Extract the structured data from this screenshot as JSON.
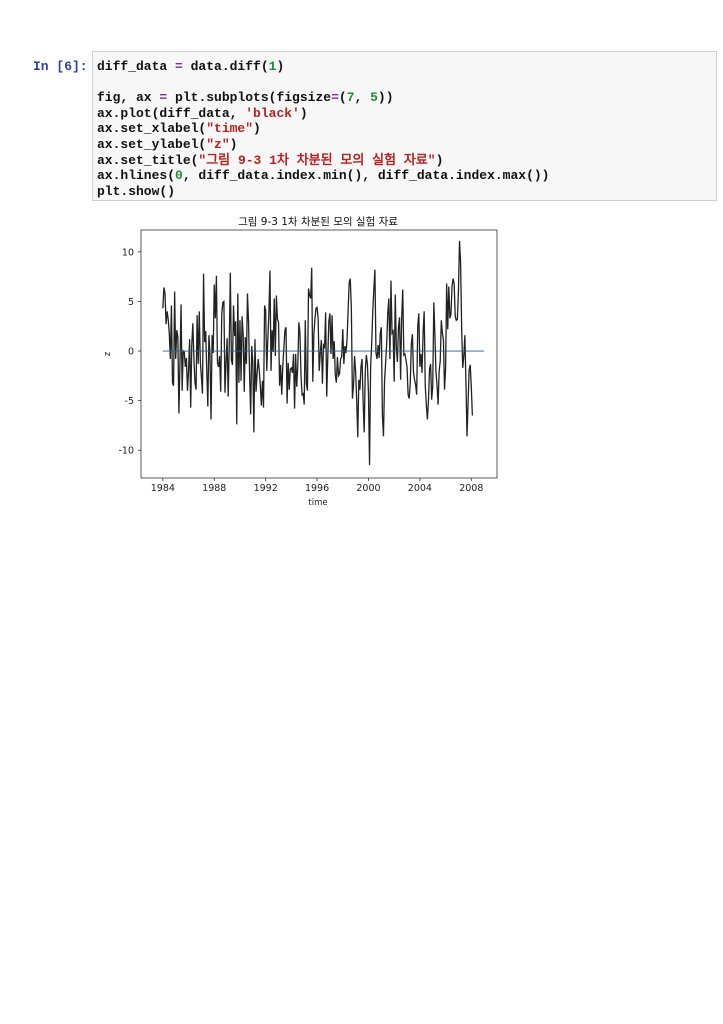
{
  "cell": {
    "prompt": "In [6]:",
    "code": [
      [
        {
          "t": "diff_data "
        },
        {
          "t": "=",
          "c": "op"
        },
        {
          "t": " data.diff("
        },
        {
          "t": "1",
          "c": "num"
        },
        {
          "t": ")"
        }
      ],
      [],
      [
        {
          "t": "fig, ax "
        },
        {
          "t": "=",
          "c": "op"
        },
        {
          "t": " plt.subplots(figsize"
        },
        {
          "t": "=",
          "c": "op"
        },
        {
          "t": "("
        },
        {
          "t": "7",
          "c": "num"
        },
        {
          "t": ", "
        },
        {
          "t": "5",
          "c": "num"
        },
        {
          "t": "))"
        }
      ],
      [
        {
          "t": "ax.plot(diff_data, "
        },
        {
          "t": "'black'",
          "c": "str"
        },
        {
          "t": ")"
        }
      ],
      [
        {
          "t": "ax.set_xlabel("
        },
        {
          "t": "\"time\"",
          "c": "str"
        },
        {
          "t": ")"
        }
      ],
      [
        {
          "t": "ax.set_ylabel("
        },
        {
          "t": "\"z\"",
          "c": "str"
        },
        {
          "t": ")"
        }
      ],
      [
        {
          "t": "ax.set_title("
        },
        {
          "t": "\"그림 9-3 1차 차분된 모의 실험 자료\"",
          "c": "str"
        },
        {
          "t": ")"
        }
      ],
      [
        {
          "t": "ax.hlines("
        },
        {
          "t": "0",
          "c": "num"
        },
        {
          "t": ", diff_data.index.min(), diff_data.index.max())"
        }
      ],
      [
        {
          "t": "plt.show()"
        }
      ]
    ]
  },
  "chart_data": {
    "type": "line",
    "title": "그림 9-3 1차 차분된 모의 실험 자료",
    "xlabel": "time",
    "ylabel": "z",
    "xlim": [
      1982.3,
      2010.0
    ],
    "ylim": [
      -12.8,
      12.2
    ],
    "xticks": [
      1984,
      1988,
      1992,
      1996,
      2000,
      2004,
      2008
    ],
    "yticks": [
      10,
      5,
      0,
      -5,
      -10
    ],
    "grid": false,
    "line_color": "#222222",
    "hline": {
      "y": 0,
      "xmin": 1984.0,
      "xmax": 2009.0,
      "color": "#1f5fa8"
    },
    "series": [
      {
        "x_start": 1984.0,
        "x_step": 0.0833333,
        "values": [
          4.3,
          6.4,
          5.8,
          2.7,
          4.0,
          3.2,
          1.8,
          -0.8,
          4.6,
          -3.2,
          -3.5,
          6.0,
          -0.8,
          2.1,
          1.4,
          -6.3,
          -1.1,
          4.7,
          -4.0,
          0.0,
          -0.1,
          -1.6,
          -0.7,
          -4.0,
          -2.0,
          1.2,
          -5.7,
          0.6,
          2.8,
          -0.8,
          -3.2,
          -3.9,
          3.6,
          -1.3,
          4.0,
          -1.1,
          -2.6,
          -4.3,
          7.8,
          0.9,
          2.0,
          -2.0,
          -5.6,
          1.6,
          -0.3,
          -6.9,
          1.6,
          -0.2,
          6.7,
          3.3,
          7.6,
          -1.2,
          -1.6,
          -0.5,
          -4.1,
          3.7,
          4.9,
          5.0,
          -4.2,
          -1.2,
          1.3,
          -4.6,
          0.6,
          7.9,
          -0.9,
          -1.4,
          4.6,
          1.5,
          3.0,
          -7.4,
          5.8,
          -3.2,
          3.1,
          -3.0,
          3.5,
          1.6,
          -4.1,
          1.4,
          -1.3,
          5.8,
          3.0,
          -2.4,
          -6.4,
          0.5,
          -1.2,
          -8.2,
          1.2,
          -4.1,
          -2.3,
          -0.8,
          -1.9,
          -3.5,
          -5.5,
          -3.0,
          -5.7,
          4.6,
          4.1,
          -2.0,
          1.2,
          3.8,
          8.1,
          -2.0,
          2.1,
          -0.1,
          5.3,
          -0.5,
          5.6,
          3.2,
          2.9,
          -3.5,
          -1.4,
          -4.4,
          -1.5,
          0.3,
          2.1,
          2.4,
          -5.3,
          -1.2,
          -3.9,
          -1.8,
          -1.7,
          -2.2,
          -0.3,
          -5.8,
          -0.3,
          -3.6,
          -1.5,
          2.9,
          1.8,
          -2.5,
          -4.4,
          -4.3,
          -5.4,
          3.1,
          -3.3,
          -4.0,
          6.3,
          5.6,
          5.3,
          8.4,
          -3.1,
          1.7,
          3.2,
          4.3,
          4.4,
          3.3,
          -2.0,
          -0.2,
          1.1,
          -3.3,
          0.6,
          0.4,
          3.9,
          -4.6,
          -0.6,
          3.0,
          3.8,
          -0.3,
          3.6,
          -0.8,
          1.0,
          -2.4,
          -3.2,
          -0.6,
          -2.5,
          -2.3,
          -0.8,
          -0.6,
          2.2,
          -1.3,
          0.5,
          -0.2,
          1.2,
          4.1,
          6.9,
          7.3,
          4.4,
          -4.8,
          -3.5,
          -0.5,
          -2.1,
          -5.0,
          -8.7,
          -2.9,
          -3.9,
          -1.6,
          -0.8,
          -5.1,
          -8.2,
          -2.0,
          -0.4,
          -1.3,
          -4.3,
          -11.5,
          -1.6,
          0.7,
          4.0,
          6.2,
          8.2,
          -0.2,
          -0.8,
          0.6,
          -0.7,
          1.8,
          2.4,
          -6.5,
          -8.6,
          -3.0,
          -1.2,
          0.8,
          3.8,
          5.3,
          -0.8,
          7.1,
          1.8,
          2.0,
          -3.1,
          5.7,
          0.4,
          -1.1,
          2.4,
          3.4,
          -2.9,
          3.4,
          6.2,
          -0.4,
          -0.3,
          -0.9,
          -1.6,
          -4.4,
          -4.8,
          -3.3,
          0.7,
          1.7,
          -2.1,
          -2.9,
          -3.4,
          -4.4,
          2.5,
          3.8,
          -1.6,
          -0.3,
          -2.2,
          1.9,
          4.0,
          -3.5,
          -5.4,
          -6.9,
          -5.0,
          -1.8,
          -1.3,
          -4.9,
          -3.6,
          4.9,
          1.7,
          -2.1,
          -3.4,
          -5.4,
          -2.0,
          -1.0,
          3.1,
          1.8,
          1.1,
          -3.9,
          -1.8,
          6.8,
          2.2,
          6.5,
          3.3,
          3.7,
          6.5,
          7.3,
          6.8,
          3.5,
          3.1,
          3.2,
          6.0,
          11.1,
          9.0,
          2.2,
          -1.7,
          -0.5,
          1.6,
          -3.2,
          -8.6,
          -5.2,
          -1.9,
          -1.4,
          -3.6,
          -6.5
        ]
      }
    ]
  }
}
